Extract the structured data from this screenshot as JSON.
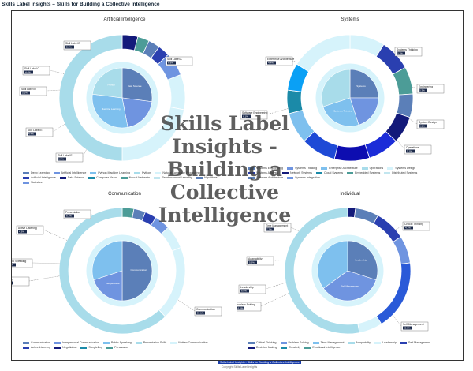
{
  "window": {
    "title": "Skills Label Insights – Skills for Building a Collective Intelligence"
  },
  "watermark": {
    "text": "Skills Label Insights - Building a Collective Intelligence"
  },
  "footer": {
    "link_text": "Skills Label Insights - Skills for Building a Collective Intelligence",
    "copyright": "Copyright Skills Label Insights"
  },
  "palette": [
    "#5b7fb8",
    "#6f94e0",
    "#7ec0ee",
    "#a8dcea",
    "#d6f3fb",
    "#2a3fb0",
    "#131a7a",
    "#1b8aa8",
    "#4c9c97",
    "#c2e6ef"
  ],
  "charts": [
    {
      "title": "Artificial Intelligence",
      "outer": [
        0.04,
        0.03,
        0.03,
        0.03,
        0.06,
        0.09,
        0.22,
        0.5
      ],
      "outer_colors": [
        "#131a7a",
        "#4c9c97",
        "#5b7fb8",
        "#2a3fb0",
        "#6f94e0",
        "#d6f3fb",
        "#d6f3fb",
        "#a8dcea"
      ],
      "inner": [
        0.27,
        0.2,
        0.3,
        0.23
      ],
      "inner_colors": [
        "#5b7fb8",
        "#6f94e0",
        "#7ec0ee",
        "#a8dcea"
      ],
      "inner_labels": [
        "Data Science",
        "",
        "Machine Learning",
        "Python"
      ],
      "callouts": [
        {
          "label": "Skill Label A",
          "value": "6.9%"
        },
        {
          "label": "Skill Label B",
          "value": "5.1%"
        },
        {
          "label": "Skill Label C",
          "value": "4.4%"
        },
        {
          "label": "Skill Label D",
          "value": "5.1%"
        },
        {
          "label": "Skill Label E",
          "value": "4.4%"
        },
        {
          "label": "Skill Label F",
          "value": "6.9%"
        }
      ],
      "legend": [
        {
          "label": "Deep Learning"
        },
        {
          "label": "Artificial Intelligence"
        },
        {
          "label": "Python Machine Learning"
        },
        {
          "label": "Python"
        },
        {
          "label": "Natural Language Processing"
        },
        {
          "label": "Artificial Intelligence"
        },
        {
          "label": "Data Science"
        },
        {
          "label": "Computer Vision"
        },
        {
          "label": "Neural Networks"
        },
        {
          "label": "Reinforcement Learning"
        },
        {
          "label": "Algorithms"
        },
        {
          "label": "Statistics"
        }
      ]
    },
    {
      "title": "Systems",
      "outer": [
        0.09,
        0.08,
        0.07,
        0.06,
        0.07,
        0.08,
        0.09,
        0.09,
        0.08,
        0.06,
        0.07,
        0.16
      ],
      "outer_colors": [
        "#d6f3fb",
        "#2a3fb0",
        "#4c9c97",
        "#5b7fb8",
        "#131a7a",
        "#1b2cd8",
        "#0d0db0",
        "#1e4ad6",
        "#7ec0ee",
        "#1b8aa8",
        "#0aa0f5",
        "#d6f3fb"
      ],
      "inner": [
        0.25,
        0.2,
        0.25,
        0.3
      ],
      "inner_colors": [
        "#5b7fb8",
        "#6f94e0",
        "#7ec0ee",
        "#a8dcea"
      ],
      "inner_labels": [
        "Systems",
        "",
        "Systems Thinking",
        ""
      ],
      "callouts": [
        {
          "label": "Systems Thinking",
          "value": "5.3%"
        },
        {
          "label": "Engineering",
          "value": "5.3%"
        },
        {
          "label": "System Design",
          "value": "6.1%"
        },
        {
          "label": "Operations",
          "value": "5.1%"
        },
        {
          "label": "Enterprise Architecture",
          "value": "4.4%"
        },
        {
          "label": "Software Engineering",
          "value": "6.1%"
        }
      ],
      "legend": [
        {
          "label": "Systems Engineering"
        },
        {
          "label": "Systems Thinking"
        },
        {
          "label": "Enterprise Architecture"
        },
        {
          "label": "Operations"
        },
        {
          "label": "Systems Design"
        },
        {
          "label": "Systems Analysis"
        },
        {
          "label": "Network Systems"
        },
        {
          "label": "Cloud Systems"
        },
        {
          "label": "Embedded Systems"
        },
        {
          "label": "Distributed Systems"
        },
        {
          "label": "Software Architecture"
        },
        {
          "label": "Systems Integration"
        }
      ]
    },
    {
      "title": "Communication",
      "outer": [
        0.03,
        0.03,
        0.03,
        0.04,
        0.06,
        0.19,
        0.62
      ],
      "outer_colors": [
        "#4c9c97",
        "#5b7fb8",
        "#2a3fb0",
        "#6f94e0",
        "#d6f3fb",
        "#d6f3fb",
        "#a8dcea"
      ],
      "inner": [
        0.5,
        0.2,
        0.3
      ],
      "inner_colors": [
        "#5b7fb8",
        "#6f94e0",
        "#7ec0ee"
      ],
      "inner_labels": [
        "Communication",
        "Interpersonal",
        ""
      ],
      "callouts": [
        {
          "label": "Active Listening",
          "value": "4.3%"
        },
        {
          "label": "Public Speaking",
          "value": "4.1%"
        },
        {
          "label": "Writing",
          "value": "4.4%"
        },
        {
          "label": "Presentation",
          "value": "6.1%"
        },
        {
          "label": "Communication",
          "value": "59.1%"
        }
      ],
      "legend": [
        {
          "label": "Communication"
        },
        {
          "label": "Interpersonal Communication"
        },
        {
          "label": "Public Speaking"
        },
        {
          "label": "Presentation Skills"
        },
        {
          "label": "Written Communication"
        },
        {
          "label": "Active Listening"
        },
        {
          "label": "Negotiation"
        },
        {
          "label": "Storytelling"
        },
        {
          "label": "Persuasion"
        }
      ]
    },
    {
      "title": "Individual",
      "outer": [
        0.02,
        0.06,
        0.08,
        0.07,
        0.18,
        0.06,
        0.53
      ],
      "outer_colors": [
        "#131a7a",
        "#5b7fb8",
        "#2a3fb0",
        "#6f94e0",
        "#2a5ad8",
        "#d6f3fb",
        "#a8dcea"
      ],
      "inner": [
        0.3,
        0.35,
        0.35
      ],
      "inner_colors": [
        "#5b7fb8",
        "#6f94e0",
        "#7ec0ee"
      ],
      "inner_labels": [
        "Leadership",
        "Self Management",
        ""
      ],
      "callouts": [
        {
          "label": "Critical Thinking",
          "value": "4.1%"
        },
        {
          "label": "Adaptability",
          "value": "5.6%"
        },
        {
          "label": "Leadership",
          "value": "6.0%"
        },
        {
          "label": "Time Management",
          "value": "7.2%"
        },
        {
          "label": "Problem Solving",
          "value": "16.3%"
        },
        {
          "label": "Self Management",
          "value": "48.3%"
        }
      ],
      "legend": [
        {
          "label": "Critical Thinking"
        },
        {
          "label": "Problem Solving"
        },
        {
          "label": "Time Management"
        },
        {
          "label": "Adaptability"
        },
        {
          "label": "Leadership"
        },
        {
          "label": "Self Management"
        },
        {
          "label": "Decision Making"
        },
        {
          "label": "Creativity"
        },
        {
          "label": "Emotional Intelligence"
        }
      ]
    }
  ]
}
